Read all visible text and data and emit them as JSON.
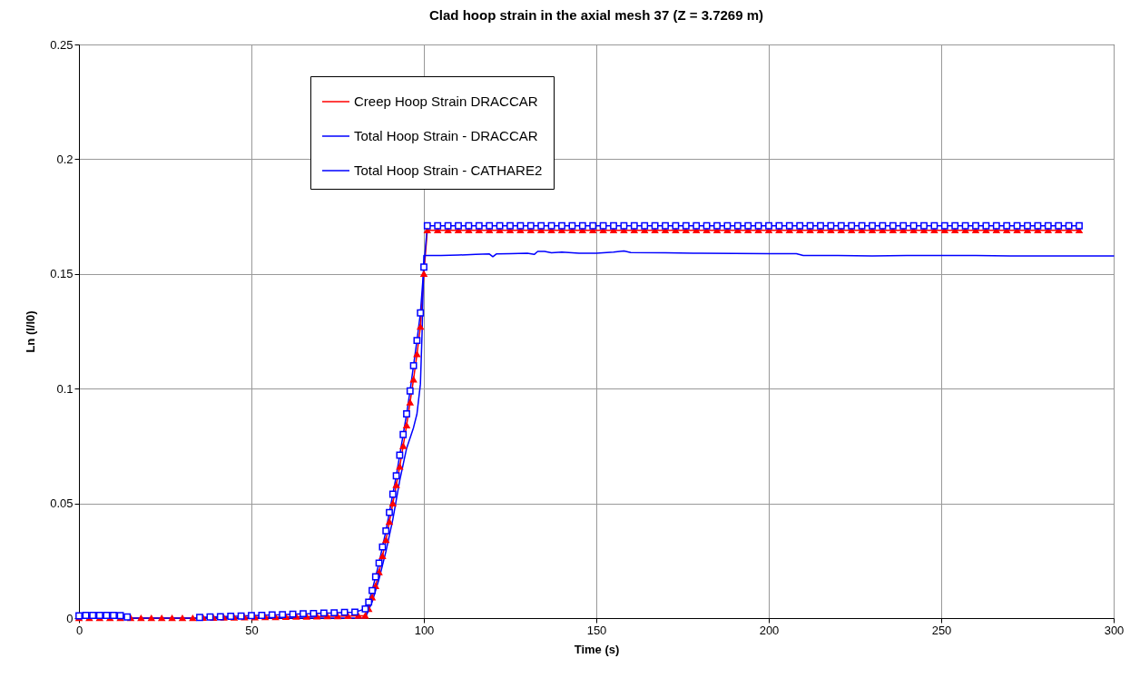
{
  "chart_data": {
    "type": "line",
    "title": "Clad hoop strain in the axial mesh 37 (Z = 3.7269 m)",
    "xlabel": "Time (s)",
    "ylabel": "Ln (l/l0)",
    "xlim": [
      0,
      300
    ],
    "xticks": [
      0,
      50,
      100,
      150,
      200,
      250,
      300
    ],
    "ylim": [
      0,
      0.25
    ],
    "yticks": [
      0,
      0.05,
      0.1,
      0.15,
      0.2,
      0.25
    ],
    "grid": true,
    "legend": "top left",
    "series": [
      {
        "name": "Creep Hoop Strain DRACCAR",
        "color": "#ff0000",
        "marker": "triangle",
        "x": [
          0,
          3,
          6,
          9,
          12,
          15,
          18,
          21,
          24,
          27,
          30,
          33,
          36,
          39,
          42,
          45,
          48,
          51,
          54,
          57,
          60,
          63,
          66,
          69,
          72,
          75,
          78,
          81,
          83,
          84,
          85,
          86,
          87,
          88,
          89,
          90,
          91,
          92,
          93,
          94,
          95,
          96,
          97,
          98,
          99,
          100,
          101,
          104,
          107,
          110,
          113,
          116,
          119,
          122,
          125,
          128,
          131,
          134,
          137,
          140,
          143,
          146,
          149,
          152,
          155,
          158,
          161,
          164,
          167,
          170,
          173,
          176,
          179,
          182,
          185,
          188,
          191,
          194,
          197,
          200,
          203,
          206,
          209,
          212,
          215,
          218,
          221,
          224,
          227,
          230,
          233,
          236,
          239,
          242,
          245,
          248,
          251,
          254,
          257,
          260,
          263,
          266,
          269,
          272,
          275,
          278,
          281,
          284,
          287,
          290
        ],
        "values": [
          0,
          0,
          0,
          0,
          0,
          0,
          0,
          0,
          0,
          0,
          0,
          0,
          0.0001,
          0.0001,
          0.0002,
          0.0002,
          0.0003,
          0.0003,
          0.0004,
          0.0004,
          0.0005,
          0.0006,
          0.0006,
          0.0007,
          0.0008,
          0.0008,
          0.0009,
          0.001,
          0.001,
          0.004,
          0.009,
          0.014,
          0.02,
          0.027,
          0.034,
          0.042,
          0.05,
          0.058,
          0.066,
          0.075,
          0.084,
          0.094,
          0.104,
          0.115,
          0.127,
          0.15,
          0.169,
          0.169,
          0.169,
          0.169,
          0.169,
          0.169,
          0.169,
          0.169,
          0.169,
          0.169,
          0.169,
          0.169,
          0.169,
          0.169,
          0.169,
          0.169,
          0.169,
          0.169,
          0.169,
          0.169,
          0.169,
          0.169,
          0.169,
          0.169,
          0.169,
          0.169,
          0.169,
          0.169,
          0.169,
          0.169,
          0.169,
          0.169,
          0.169,
          0.169,
          0.169,
          0.169,
          0.169,
          0.169,
          0.169,
          0.169,
          0.169,
          0.169,
          0.169,
          0.169,
          0.169,
          0.169,
          0.169,
          0.169,
          0.169,
          0.169,
          0.169,
          0.169,
          0.169,
          0.169,
          0.169,
          0.169,
          0.169,
          0.169,
          0.169,
          0.169,
          0.169,
          0.169,
          0.169,
          0.169
        ]
      },
      {
        "name": "Total Hoop Strain - DRACCAR",
        "color": "#0000ff",
        "marker": "square",
        "x": [
          0,
          2,
          4,
          6,
          8,
          10,
          12,
          14,
          25,
          35,
          38,
          41,
          44,
          47,
          50,
          53,
          56,
          59,
          62,
          65,
          68,
          71,
          74,
          77,
          80,
          83,
          84,
          85,
          86,
          87,
          88,
          89,
          90,
          91,
          92,
          93,
          94,
          95,
          96,
          97,
          98,
          99,
          100,
          101,
          104,
          107,
          110,
          113,
          116,
          119,
          122,
          125,
          128,
          131,
          134,
          137,
          140,
          143,
          146,
          149,
          152,
          155,
          158,
          161,
          164,
          167,
          170,
          173,
          176,
          179,
          182,
          185,
          188,
          191,
          194,
          197,
          200,
          203,
          206,
          209,
          212,
          215,
          218,
          221,
          224,
          227,
          230,
          233,
          236,
          239,
          242,
          245,
          248,
          251,
          254,
          257,
          260,
          263,
          266,
          269,
          272,
          275,
          278,
          281,
          284,
          287,
          290
        ],
        "values": [
          0.001,
          0.0012,
          0.0012,
          0.0012,
          0.0012,
          0.0012,
          0.0011,
          0.0005,
          null,
          0.0003,
          0.0005,
          0.0006,
          0.0008,
          0.0009,
          0.0011,
          0.0012,
          0.0014,
          0.0015,
          0.0017,
          0.0019,
          0.002,
          0.0022,
          0.0023,
          0.0025,
          0.0026,
          0.004,
          0.007,
          0.012,
          0.018,
          0.024,
          0.031,
          0.038,
          0.046,
          0.054,
          0.062,
          0.071,
          0.08,
          0.089,
          0.099,
          0.11,
          0.121,
          0.133,
          0.153,
          0.171,
          0.171,
          0.171,
          0.171,
          0.171,
          0.171,
          0.171,
          0.171,
          0.171,
          0.171,
          0.171,
          0.171,
          0.171,
          0.171,
          0.171,
          0.171,
          0.171,
          0.171,
          0.171,
          0.171,
          0.171,
          0.171,
          0.171,
          0.171,
          0.171,
          0.171,
          0.171,
          0.171,
          0.171,
          0.171,
          0.171,
          0.171,
          0.171,
          0.171,
          0.171,
          0.171,
          0.171,
          0.171,
          0.171,
          0.171,
          0.171,
          0.171,
          0.171,
          0.171,
          0.171,
          0.171,
          0.171,
          0.171,
          0.171,
          0.171,
          0.171,
          0.171,
          0.171,
          0.171,
          0.171,
          0.171,
          0.171,
          0.171,
          0.171,
          0.171,
          0.171,
          0.171,
          0.171,
          0.171
        ]
      },
      {
        "name": "Total Hoop Strain - CATHARE2",
        "color": "#0000ff",
        "marker": "none",
        "x": [
          0,
          83,
          85,
          87,
          89,
          91,
          93,
          95,
          97,
          98,
          99,
          99.5,
          100,
          105,
          110,
          115,
          119,
          120,
          121,
          125,
          130,
          132,
          133,
          135,
          137,
          140,
          145,
          150,
          155,
          158,
          160,
          170,
          180,
          200,
          208,
          210,
          220,
          230,
          240,
          250,
          260,
          270,
          280,
          290,
          300
        ],
        "values": [
          0,
          0,
          0.007,
          0.017,
          0.029,
          0.043,
          0.06,
          0.074,
          0.083,
          0.089,
          0.102,
          0.125,
          0.158,
          0.158,
          0.1582,
          0.1585,
          0.1587,
          0.1575,
          0.1587,
          0.1588,
          0.159,
          0.1585,
          0.1598,
          0.1598,
          0.1592,
          0.1595,
          0.159,
          0.159,
          0.1595,
          0.16,
          0.1593,
          0.1592,
          0.159,
          0.1588,
          0.1588,
          0.158,
          0.158,
          0.1578,
          0.158,
          0.158,
          0.158,
          0.1578,
          0.1578,
          0.1578,
          0.1578
        ]
      }
    ]
  }
}
